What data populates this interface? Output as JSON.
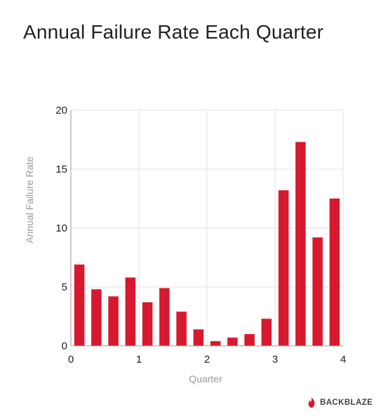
{
  "chart_data": {
    "type": "bar",
    "title": "Annual Failure Rate Each Quarter",
    "xlabel": "Quarter",
    "ylabel": "Annual Failure Rate",
    "xlim": [
      0,
      4
    ],
    "ylim": [
      0,
      20
    ],
    "xticks": [
      "0",
      "1",
      "2",
      "3",
      "4"
    ],
    "yticks": [
      "0",
      "5",
      "10",
      "15",
      "20"
    ],
    "grid": true,
    "x": [
      0.125,
      0.375,
      0.625,
      0.875,
      1.125,
      1.375,
      1.625,
      1.875,
      2.125,
      2.375,
      2.625,
      2.875,
      3.125,
      3.375,
      3.625,
      3.875
    ],
    "values": [
      6.9,
      4.8,
      4.2,
      5.8,
      3.7,
      4.9,
      2.9,
      1.4,
      0.4,
      0.7,
      1.0,
      2.3,
      13.2,
      17.3,
      9.2,
      12.5
    ],
    "bar_color": "#d7192f"
  },
  "brand": {
    "name": "BACKBLAZE",
    "accent": "#d7192f"
  }
}
